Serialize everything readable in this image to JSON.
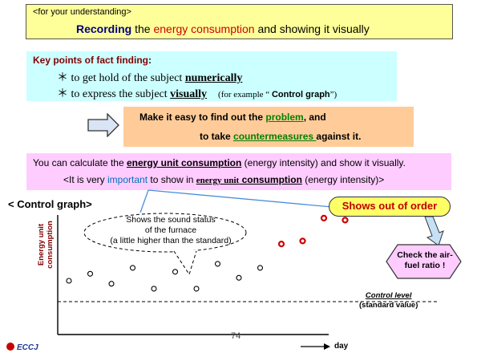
{
  "header": {
    "small_text": "<for your understanding>",
    "title_part1": "Recording",
    "title_part2": " the ",
    "title_part3": "energy consumption",
    "title_part4": " and showing it visually"
  },
  "key_points": {
    "heading": "Key points of fact finding",
    "heading_colon": ":",
    "line1_prefix": "＊ to get hold of the subject ",
    "line1_emph": "numerically",
    "line2_prefix": "＊ to express the subject ",
    "line2_emph": "visually",
    "line2_note_prefix": "(for example “ ",
    "line2_note_emph": "Control graph",
    "line2_note_suffix": "”)"
  },
  "make_easy": {
    "line1_prefix": "Make it easy to find out the ",
    "line1_emph": "problem",
    "line1_suffix": ", and",
    "line2_prefix": "to take ",
    "line2_emph": "countermeasures ",
    "line2_suffix": " against it."
  },
  "calc": {
    "line1_prefix": "You can calculate the ",
    "line1_emph": "energy unit consumption",
    "line1_suffix": " (energy intensity) and show it visually.",
    "line2_prefix": "<It is very ",
    "line2_blue": "important",
    "line2_mid": " to show in ",
    "line2_emph1": "energy unit",
    "line2_emph2": " consumption",
    "line2_suffix": " (energy intensity)>"
  },
  "control_graph": {
    "title": "< Control graph>",
    "cloud_lines": [
      "Shows the sound status",
      "of the furnace",
      "(a little higher than the standard)"
    ],
    "out_of_order": "Shows out of order",
    "check_lines": [
      "Check the air-",
      "fuel ratio !"
    ],
    "ylabel_lines": [
      "Energy unit",
      "consumption"
    ],
    "control_level": "Control level",
    "standard_value": "(standard value)",
    "xlabel": "day"
  },
  "chart_data": {
    "type": "scatter",
    "series": [
      {
        "values": [
          {
            "x": 1,
            "y": 0.25
          },
          {
            "x": 2,
            "y": 0.32
          },
          {
            "x": 3,
            "y": 0.22
          },
          {
            "x": 4,
            "y": 0.38
          },
          {
            "x": 5,
            "y": 0.17
          },
          {
            "x": 6,
            "y": 0.34
          },
          {
            "x": 7,
            "y": 0.17
          },
          {
            "x": 8,
            "y": 0.42
          },
          {
            "x": 9,
            "y": 0.28
          },
          {
            "x": 10,
            "y": 0.38
          }
        ],
        "color": "#000000"
      },
      {
        "values": [
          {
            "x": 11,
            "y": 0.62
          },
          {
            "x": 12,
            "y": 0.65
          },
          {
            "x": 13,
            "y": 0.88
          },
          {
            "x": 14,
            "y": 0.86
          },
          {
            "x": 15,
            "y": 0.96
          }
        ],
        "color": "#cc0000"
      }
    ],
    "control_level_y": 0.17,
    "xlabel": "day",
    "ylabel": "Energy unit consumption"
  },
  "footer": {
    "page_number": "74",
    "logo_text": "ECCJ"
  },
  "colors": {
    "header_bg": "#ffff99",
    "key_points_bg": "#ccffff",
    "make_easy_bg": "#ffcc99",
    "calc_bg": "#ffccff",
    "normal_point": "#000000",
    "abnormal_point": "#cc0000",
    "callout_bg": "#ffff66",
    "check_bg": "#ffccff"
  }
}
